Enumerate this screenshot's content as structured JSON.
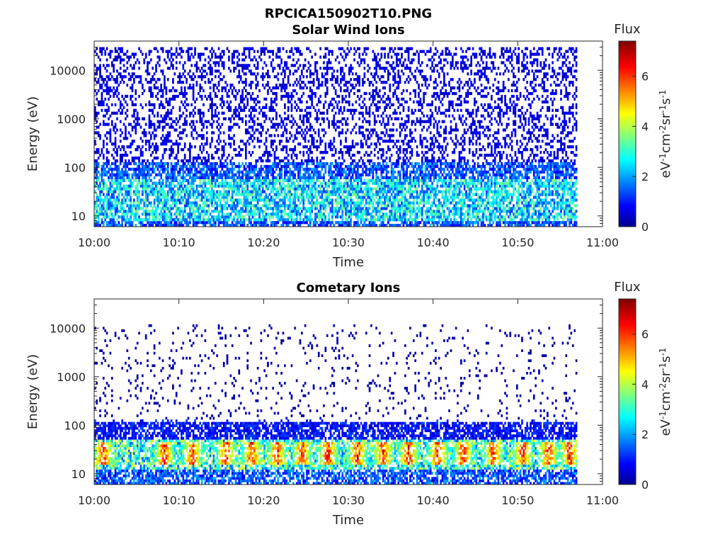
{
  "figure": {
    "title": "RPCICA150902T10.PNG"
  },
  "chart_data": [
    {
      "type": "heatmap",
      "title": "Solar Wind Ions",
      "xlabel": "Time",
      "ylabel": "Energy (eV)",
      "x_ticks": [
        "10:00",
        "10:10",
        "10:20",
        "10:30",
        "10:40",
        "10:50",
        "11:00"
      ],
      "x_range": [
        "10:00",
        "11:00"
      ],
      "data_time_range": [
        "10:00",
        "10:57"
      ],
      "y_scale": "log",
      "y_ticks": [
        "10",
        "100",
        "1000",
        "10000"
      ],
      "y_range_eV": [
        6,
        40000
      ],
      "colorbar": {
        "title": "Flux",
        "label": "eV-1cm-2sr-1s-1",
        "ticks": [
          "0",
          "2",
          "4",
          "6"
        ],
        "range": [
          0,
          7.4
        ],
        "colormap": "jet"
      },
      "description_of_values": "sparse flux ~0.5-1 at high energies, ~2-4 below 100 eV",
      "bands": [
        {
          "energy_eV": [
            6,
            8
          ],
          "flux": 1.5
        },
        {
          "energy_eV": [
            8,
            60
          ],
          "flux": 2.5
        },
        {
          "energy_eV": [
            60,
            120
          ],
          "flux": 1.5
        },
        {
          "energy_eV": [
            120,
            30000
          ],
          "flux": 0.7
        }
      ]
    },
    {
      "type": "heatmap",
      "title": "Cometary Ions",
      "xlabel": "Time",
      "ylabel": "Energy (eV)",
      "x_ticks": [
        "10:00",
        "10:10",
        "10:20",
        "10:30",
        "10:40",
        "10:50",
        "11:00"
      ],
      "x_range": [
        "10:00",
        "11:00"
      ],
      "data_time_range": [
        "10:00",
        "10:57"
      ],
      "y_scale": "log",
      "y_ticks": [
        "10",
        "100",
        "1000",
        "10000"
      ],
      "y_range_eV": [
        6,
        40000
      ],
      "colorbar": {
        "title": "Flux",
        "label": "eV-1cm-2sr-1s-1",
        "ticks": [
          "0",
          "2",
          "4",
          "6"
        ],
        "range": [
          0,
          7.4
        ],
        "colormap": "jet"
      },
      "bursts_minutes": [
        1.0,
        8.2,
        11.5,
        15.5,
        18.5,
        21.5,
        24.5,
        27.5,
        31.0,
        34.0,
        37.0,
        40.5,
        43.5,
        47.0,
        50.5,
        53.5,
        56.0
      ],
      "burst_flux_peak": 6.5,
      "burst_energy_eV": [
        15,
        45
      ],
      "bands": [
        {
          "energy_eV": [
            6,
            12
          ],
          "flux": 1.5
        },
        {
          "energy_eV": [
            12,
            50
          ],
          "flux": 3.0
        },
        {
          "energy_eV": [
            50,
            130
          ],
          "flux": 1.0
        },
        {
          "energy_eV": [
            130,
            12000
          ],
          "flux": 0.3
        }
      ]
    }
  ]
}
